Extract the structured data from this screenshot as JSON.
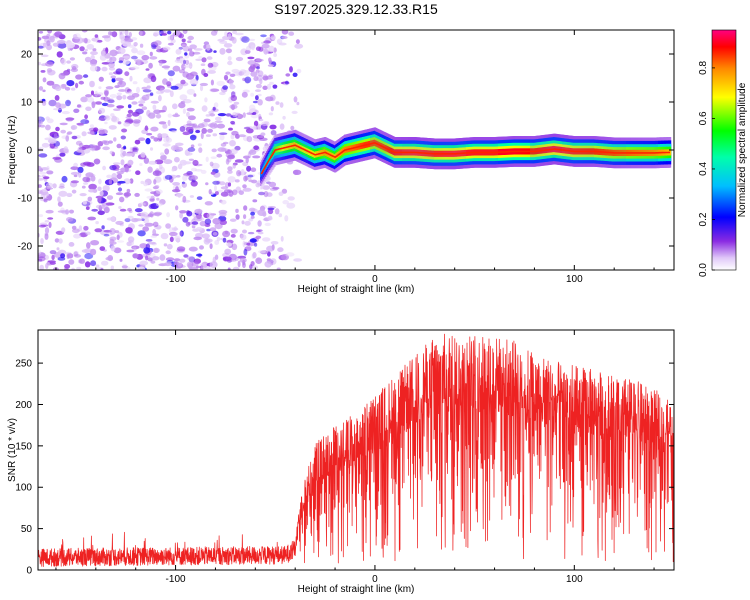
{
  "title": "S197.2025.329.12.33.R15",
  "chart_data": [
    {
      "type": "heatmap",
      "xlabel": "Height of straight line (km)",
      "ylabel": "Frequency (Hz)",
      "xlim": [
        -169,
        150
      ],
      "ylim": [
        -25,
        25
      ],
      "xticks": [
        -100,
        0,
        100
      ],
      "xtick_labels": [
        "-100",
        "0",
        "100"
      ],
      "yticks": [
        -20,
        -10,
        0,
        10,
        20
      ],
      "ytick_labels": [
        "-20",
        "-10",
        "0",
        "10",
        "20"
      ],
      "grid": false,
      "colorbar": {
        "label": "Normalized spectral amplitude",
        "range": [
          0,
          0.95
        ],
        "ticks": [
          0.0,
          0.2,
          0.4,
          0.6,
          0.8
        ],
        "tick_labels": [
          "0.0",
          "0.2",
          "0.4",
          "0.6",
          "0.8"
        ]
      },
      "noise_region_x": [
        -169,
        -50
      ],
      "ridge": {
        "x": [
          -57,
          -53,
          -50,
          -45,
          -40,
          -35,
          -30,
          -25,
          -20,
          -15,
          -10,
          -5,
          0,
          5,
          10,
          20,
          30,
          40,
          50,
          60,
          70,
          80,
          90,
          100,
          110,
          120,
          130,
          140,
          148
        ],
        "y": [
          -5,
          -2,
          0,
          0.5,
          1,
          0,
          -1,
          -0.5,
          -1.5,
          0,
          0.5,
          1,
          1.5,
          0.5,
          -0.5,
          -0.5,
          -0.8,
          -0.8,
          -0.5,
          -0.5,
          -0.3,
          -0.3,
          0.2,
          -0.3,
          -0.3,
          -0.6,
          -0.6,
          -0.6,
          -0.5
        ],
        "amplitude": [
          0.3,
          0.45,
          0.6,
          0.7,
          0.75,
          0.7,
          0.72,
          0.78,
          0.75,
          0.8,
          0.82,
          0.85,
          0.85,
          0.85,
          0.9,
          0.92,
          0.9,
          0.92,
          0.9,
          0.9,
          0.9,
          0.88,
          0.92,
          0.9,
          0.88,
          0.85,
          0.82,
          0.8,
          0.75
        ]
      }
    },
    {
      "type": "line",
      "xlabel": "Height of straight line (km)",
      "ylabel": "SNR (10 * v/v)",
      "xlim": [
        -169,
        150
      ],
      "ylim": [
        0,
        290
      ],
      "xticks": [
        -100,
        0,
        100
      ],
      "xtick_labels": [
        "-100",
        "0",
        "100"
      ],
      "yticks": [
        0,
        50,
        100,
        150,
        200,
        250
      ],
      "ytick_labels": [
        "0",
        "50",
        "100",
        "150",
        "200",
        "250"
      ],
      "grid": false,
      "color": "#ee2222",
      "envelope": {
        "x": [
          -169,
          -45,
          -40,
          -37,
          -30,
          -20,
          -10,
          0,
          10,
          20,
          30,
          40,
          50,
          60,
          70,
          80,
          90,
          100,
          110,
          120,
          130,
          140,
          150
        ],
        "y": [
          15,
          18,
          25,
          80,
          130,
          150,
          160,
          180,
          200,
          220,
          240,
          245,
          240,
          240,
          235,
          225,
          215,
          210,
          205,
          200,
          195,
          185,
          175
        ]
      }
    }
  ]
}
